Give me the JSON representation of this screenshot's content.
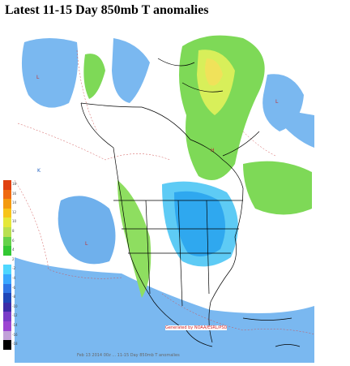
{
  "page": {
    "title": "Latest 11-15 Day 850mb T anomalies"
  },
  "map": {
    "type": "anomaly-contour-map",
    "region": "North America",
    "legend": {
      "colors": [
        "#e04010",
        "#ef6a10",
        "#f39a10",
        "#f7c41a",
        "#e5e83a",
        "#b8e050",
        "#64d24a",
        "#33c833",
        "#ffffff",
        "#4fd7ff",
        "#3aa8ff",
        "#2f75e6",
        "#1e46b8",
        "#3b2ca8",
        "#7a3cc8",
        "#9c46d2",
        "#c1a0d8",
        "#000000"
      ],
      "labels": [
        "18",
        "16",
        "14",
        "12",
        "10",
        "8",
        "6",
        "4",
        "2",
        "-2",
        "-4",
        "-6",
        "-8",
        "-10",
        "-12",
        "-14",
        "-16",
        "-18"
      ]
    }
  },
  "credit": "Generated by NOAA/ESRL/PSD",
  "caption": "Feb 13 2014 00z ... 11-15 Day 850mb T anomalies"
}
